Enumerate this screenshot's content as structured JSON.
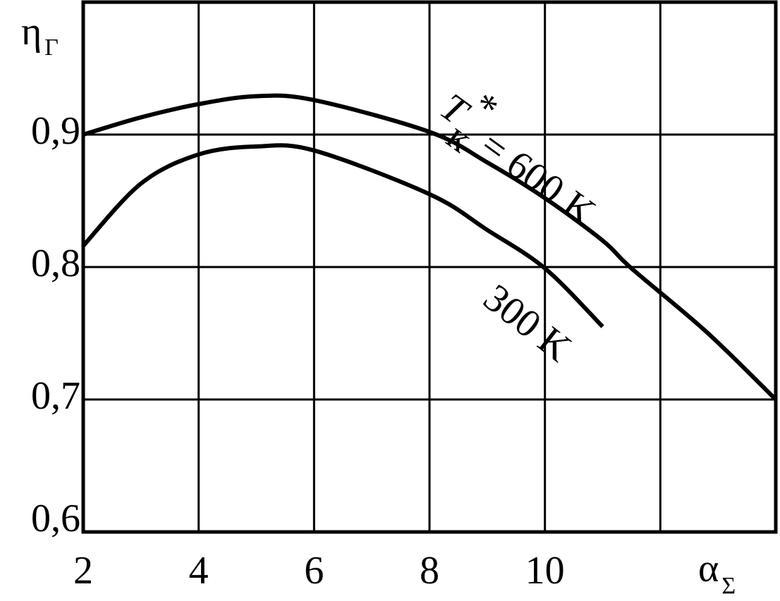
{
  "chart_data": {
    "type": "line",
    "y_label": {
      "symbol": "η",
      "subscript": "Г"
    },
    "x_label": {
      "symbol": "α",
      "subscript": "Σ"
    },
    "x": [
      2,
      3,
      4,
      5,
      6,
      8,
      9,
      10,
      11,
      11.5,
      12.8,
      14
    ],
    "series": [
      {
        "name": "= 600 K",
        "color": "#000000",
        "values": [
          0.9,
          0.913,
          0.923,
          0.929,
          0.926,
          0.902,
          0.879,
          0.852,
          0.82,
          0.799,
          0.751,
          0.7
        ]
      },
      {
        "name": "300 K",
        "color": "#000000",
        "values": [
          0.816,
          0.863,
          0.885,
          0.891,
          0.888,
          0.855,
          0.828,
          0.799,
          0.755,
          null,
          null,
          null
        ]
      }
    ],
    "annotation": {
      "symbol": "T",
      "superscript": "*",
      "subscript": "к"
    },
    "xlim": [
      2,
      14
    ],
    "xticks": [
      2,
      4,
      6,
      8,
      10
    ],
    "x_gridlines": [
      4,
      6,
      8,
      10,
      12
    ],
    "ylim": [
      0.6,
      1.0
    ],
    "yticks": [
      {
        "value": 0.6,
        "label": "0,6"
      },
      {
        "value": 0.7,
        "label": "0,7"
      },
      {
        "value": 0.8,
        "label": "0,8"
      },
      {
        "value": 0.9,
        "label": "0,9"
      }
    ],
    "grid": true
  }
}
